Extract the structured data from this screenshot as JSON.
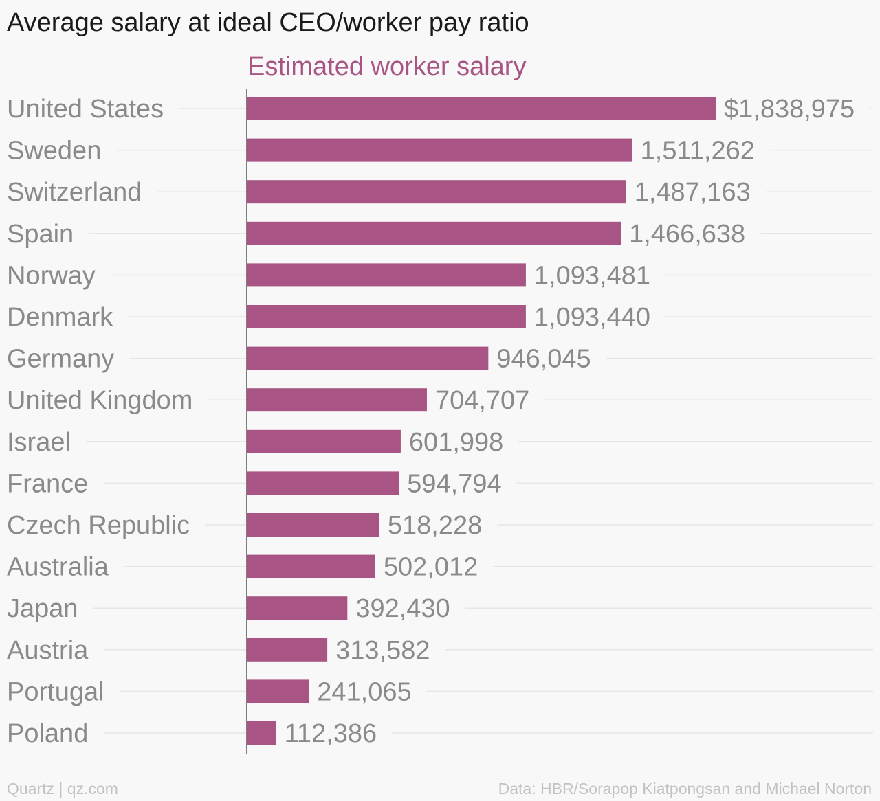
{
  "title": "Average salary at ideal CEO/worker pay ratio",
  "footer": {
    "left": "Quartz | qz.com",
    "right": "Data: HBR/Sorapop Kiatpongsan and Michael Norton"
  },
  "colors": {
    "bar": "#a85585",
    "text": "#8a8a8a",
    "title": "#1a1a1a",
    "grid": "#e6e6e6"
  },
  "chart_data": {
    "type": "bar",
    "orientation": "horizontal",
    "title": "Average salary at ideal CEO/worker pay ratio",
    "series": [
      {
        "name": "Estimated worker salary",
        "values": [
          1838975,
          1511262,
          1487163,
          1466638,
          1093481,
          1093440,
          946045,
          704707,
          601998,
          594794,
          518228,
          502012,
          392430,
          313582,
          241065,
          112386
        ]
      }
    ],
    "categories": [
      "United States",
      "Sweden",
      "Switzerland",
      "Spain",
      "Norway",
      "Denmark",
      "Germany",
      "United Kingdom",
      "Israel",
      "France",
      "Czech Republic",
      "Australia",
      "Japan",
      "Austria",
      "Portugal",
      "Poland"
    ],
    "value_labels": [
      "$1,838,975",
      "1,511,262",
      "1,487,163",
      "1,466,638",
      "1,093,481",
      "1,093,440",
      "946,045",
      "704,707",
      "601,998",
      "594,794",
      "518,228",
      "502,012",
      "392,430",
      "313,582",
      "241,065",
      "112,386"
    ],
    "xlim": [
      0,
      2000000
    ],
    "grid": true
  }
}
